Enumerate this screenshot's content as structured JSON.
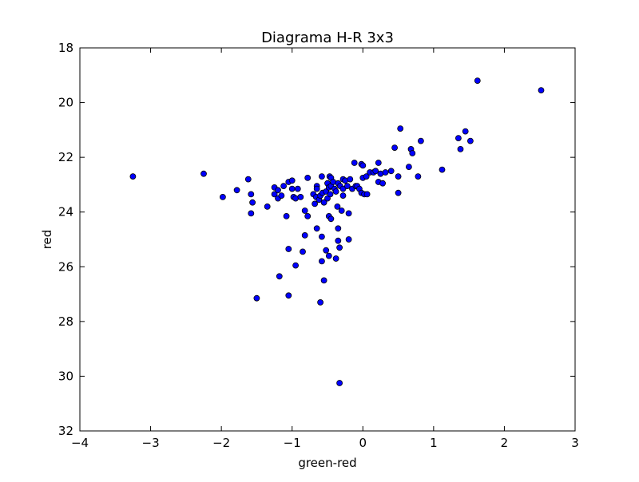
{
  "chart_data": {
    "type": "scatter",
    "title": "Diagrama H-R 3x3",
    "xlabel": "green-red",
    "ylabel": "red",
    "xlim": [
      -4,
      3
    ],
    "ylim": [
      32,
      18
    ],
    "y_inverted": true,
    "grid": false,
    "xticks": [
      "−4",
      "−3",
      "−2",
      "−1",
      "0",
      "1",
      "2",
      "3"
    ],
    "yticks": [
      "18",
      "20",
      "22",
      "24",
      "26",
      "28",
      "30",
      "32"
    ],
    "marker_color": "#0000ff",
    "marker_edge": "#000000",
    "points": [
      [
        -3.25,
        22.7
      ],
      [
        -2.25,
        22.6
      ],
      [
        -1.98,
        23.45
      ],
      [
        -1.78,
        23.2
      ],
      [
        -1.62,
        22.8
      ],
      [
        -1.58,
        23.35
      ],
      [
        -1.56,
        23.65
      ],
      [
        -1.58,
        24.05
      ],
      [
        -1.35,
        23.8
      ],
      [
        -1.25,
        23.1
      ],
      [
        -1.25,
        23.35
      ],
      [
        -1.2,
        23.2
      ],
      [
        -1.2,
        23.5
      ],
      [
        -1.15,
        23.4
      ],
      [
        -1.12,
        23.05
      ],
      [
        -1.05,
        22.9
      ],
      [
        -1.0,
        23.15
      ],
      [
        -1.0,
        22.85
      ],
      [
        -0.98,
        23.45
      ],
      [
        -0.95,
        23.5
      ],
      [
        -0.92,
        23.15
      ],
      [
        -0.88,
        23.45
      ],
      [
        -0.82,
        23.95
      ],
      [
        -0.78,
        22.75
      ],
      [
        -0.78,
        24.15
      ],
      [
        -0.7,
        23.35
      ],
      [
        -0.68,
        23.7
      ],
      [
        -0.66,
        23.45
      ],
      [
        -0.65,
        23.05
      ],
      [
        -0.65,
        23.15
      ],
      [
        -0.62,
        23.55
      ],
      [
        -0.6,
        23.4
      ],
      [
        -0.58,
        22.7
      ],
      [
        -0.57,
        23.3
      ],
      [
        -0.55,
        23.65
      ],
      [
        -0.52,
        23.25
      ],
      [
        -0.5,
        23.5
      ],
      [
        -0.5,
        22.95
      ],
      [
        -0.48,
        23.1
      ],
      [
        -0.47,
        22.7
      ],
      [
        -0.46,
        23.35
      ],
      [
        -0.45,
        23.05
      ],
      [
        -0.45,
        22.75
      ],
      [
        -0.42,
        22.9
      ],
      [
        -0.4,
        23.15
      ],
      [
        -0.38,
        23.25
      ],
      [
        -0.36,
        23.8
      ],
      [
        -0.35,
        22.95
      ],
      [
        -0.32,
        23.05
      ],
      [
        -0.3,
        23.95
      ],
      [
        -0.28,
        22.8
      ],
      [
        -0.28,
        23.15
      ],
      [
        -0.28,
        23.4
      ],
      [
        -0.25,
        22.85
      ],
      [
        -0.22,
        23.05
      ],
      [
        -0.2,
        24.05
      ],
      [
        -0.18,
        22.8
      ],
      [
        -0.15,
        23.15
      ],
      [
        -0.12,
        22.2
      ],
      [
        -0.1,
        23.05
      ],
      [
        -0.08,
        23.05
      ],
      [
        -0.05,
        23.15
      ],
      [
        -0.02,
        22.25
      ],
      [
        0.0,
        22.3
      ],
      [
        -0.02,
        23.3
      ],
      [
        0.0,
        22.75
      ],
      [
        0.02,
        23.35
      ],
      [
        0.05,
        22.7
      ],
      [
        0.06,
        23.35
      ],
      [
        0.1,
        22.55
      ],
      [
        0.15,
        22.55
      ],
      [
        0.18,
        22.5
      ],
      [
        0.22,
        22.2
      ],
      [
        0.22,
        22.9
      ],
      [
        0.25,
        22.6
      ],
      [
        0.28,
        22.95
      ],
      [
        0.32,
        22.55
      ],
      [
        0.4,
        22.5
      ],
      [
        0.45,
        21.65
      ],
      [
        0.5,
        22.7
      ],
      [
        0.5,
        23.3
      ],
      [
        0.53,
        20.95
      ],
      [
        0.65,
        22.35
      ],
      [
        0.68,
        21.7
      ],
      [
        0.7,
        21.85
      ],
      [
        0.78,
        22.7
      ],
      [
        0.82,
        21.4
      ],
      [
        1.12,
        22.45
      ],
      [
        1.35,
        21.3
      ],
      [
        1.38,
        21.7
      ],
      [
        1.45,
        21.05
      ],
      [
        1.52,
        21.4
      ],
      [
        1.62,
        19.2
      ],
      [
        2.52,
        19.55
      ],
      [
        -1.08,
        24.15
      ],
      [
        -1.05,
        25.35
      ],
      [
        -0.95,
        25.95
      ],
      [
        -0.85,
        25.45
      ],
      [
        -0.82,
        24.85
      ],
      [
        -0.65,
        24.6
      ],
      [
        -0.58,
        24.9
      ],
      [
        -0.58,
        25.8
      ],
      [
        -0.55,
        26.5
      ],
      [
        -0.52,
        25.4
      ],
      [
        -0.48,
        24.15
      ],
      [
        -0.45,
        24.25
      ],
      [
        -0.48,
        25.6
      ],
      [
        -0.38,
        25.7
      ],
      [
        -0.35,
        24.6
      ],
      [
        -0.35,
        25.05
      ],
      [
        -0.33,
        25.3
      ],
      [
        -0.2,
        25.0
      ],
      [
        -1.18,
        26.35
      ],
      [
        -1.05,
        27.05
      ],
      [
        -1.5,
        27.15
      ],
      [
        -0.6,
        27.3
      ],
      [
        -0.33,
        30.25
      ]
    ]
  }
}
